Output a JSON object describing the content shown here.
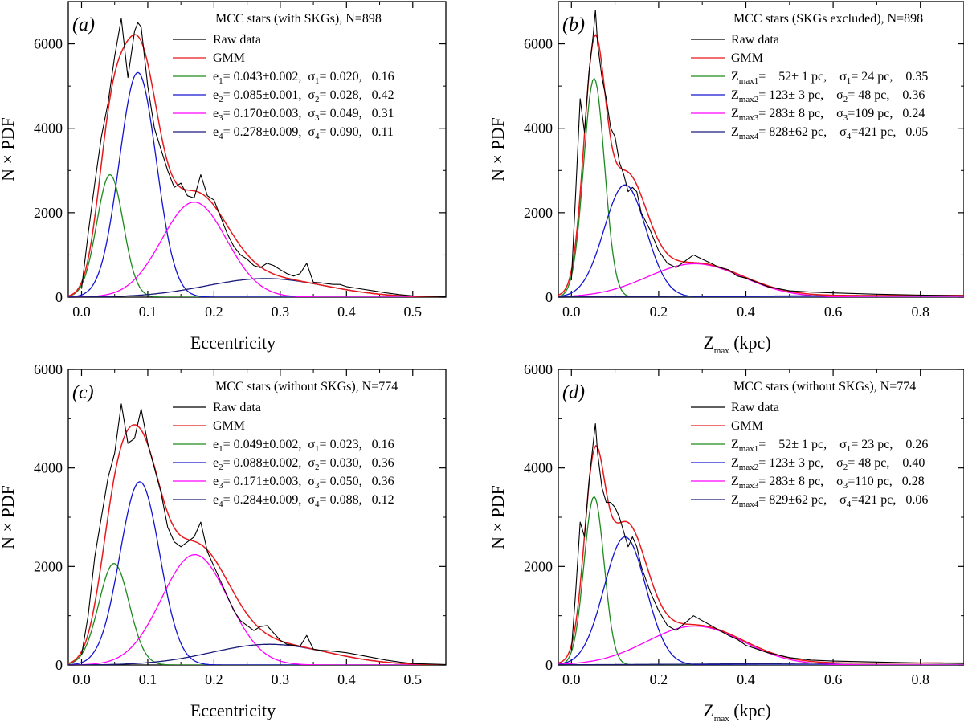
{
  "colors": {
    "raw": "#000000",
    "gmm": "#e8191c",
    "comp1": "#1e8a1e",
    "comp2": "#1414d2",
    "comp3": "#ff00ff",
    "comp4": "#1b1b7a"
  },
  "chart_data": [
    {
      "type": "line",
      "panel_label": "(a)",
      "xlabel": "Eccentricity",
      "ylabel": "N × PDF",
      "xlim": [
        -0.02,
        0.55
      ],
      "ylim": [
        0,
        7000
      ],
      "xticks": [
        "0.0",
        "0.1",
        "0.2",
        "0.3",
        "0.4",
        "0.5"
      ],
      "xtick_values": [
        0.0,
        0.1,
        0.2,
        0.3,
        0.4,
        0.5
      ],
      "yticks": [
        "0",
        "2000",
        "4000",
        "6000"
      ],
      "ytick_values": [
        0,
        2000,
        4000,
        6000
      ],
      "grid": false,
      "legend_placement": "top-right",
      "legend_title": "MCC stars (with SKGs),    N=898",
      "raw_label": "Raw data",
      "gmm_label": "GMM",
      "components": [
        {
          "sym": "e",
          "idx": "1",
          "rest": "= 0.043±0.002,  σ",
          "sidx": "1",
          "tail": "= 0.020,   0.16",
          "mu": 0.043,
          "sigma": 0.02,
          "peak": 2900
        },
        {
          "sym": "e",
          "idx": "2",
          "rest": "= 0.085±0.001,  σ",
          "sidx": "2",
          "tail": "= 0.028,   0.42",
          "mu": 0.085,
          "sigma": 0.028,
          "peak": 5320
        },
        {
          "sym": "e",
          "idx": "3",
          "rest": "= 0.170±0.003,  σ",
          "sidx": "3",
          "tail": "= 0.049,   0.31",
          "mu": 0.17,
          "sigma": 0.049,
          "peak": 2250
        },
        {
          "sym": "e",
          "idx": "4",
          "rest": "= 0.278±0.009,  σ",
          "sidx": "4",
          "tail": "= 0.090,   0.11",
          "mu": 0.278,
          "sigma": 0.09,
          "peak": 440
        }
      ],
      "raw_x": [
        0.0,
        0.01,
        0.02,
        0.03,
        0.04,
        0.05,
        0.06,
        0.07,
        0.08,
        0.085,
        0.09,
        0.1,
        0.11,
        0.12,
        0.13,
        0.14,
        0.15,
        0.16,
        0.17,
        0.18,
        0.19,
        0.2,
        0.21,
        0.22,
        0.23,
        0.24,
        0.25,
        0.26,
        0.27,
        0.28,
        0.29,
        0.3,
        0.31,
        0.32,
        0.33,
        0.34,
        0.35,
        0.36,
        0.37,
        0.38,
        0.39,
        0.4,
        0.42,
        0.44,
        0.46,
        0.48,
        0.5,
        0.52,
        0.55
      ],
      "raw_y": [
        200,
        1500,
        2700,
        3800,
        4600,
        5700,
        6600,
        5200,
        6300,
        6500,
        6400,
        5000,
        4000,
        3500,
        3000,
        2600,
        2700,
        2400,
        2350,
        2900,
        2400,
        2300,
        1900,
        1500,
        1200,
        1000,
        900,
        750,
        700,
        800,
        750,
        650,
        560,
        500,
        560,
        800,
        350,
        340,
        320,
        300,
        300,
        250,
        200,
        150,
        100,
        60,
        30,
        20,
        10
      ]
    },
    {
      "type": "line",
      "panel_label": "(b)",
      "xlabel": "Z",
      "xlabel_sub": "max",
      "xlabel_unit": " (kpc)",
      "ylabel": "N × PDF",
      "xlim": [
        -0.03,
        0.9
      ],
      "ylim": [
        0,
        7000
      ],
      "xticks": [
        "0.0",
        "0.2",
        "0.4",
        "0.6",
        "0.8"
      ],
      "xtick_values": [
        0.0,
        0.2,
        0.4,
        0.6,
        0.8
      ],
      "yticks": [
        "0",
        "2000",
        "4000",
        "6000"
      ],
      "ytick_values": [
        0,
        2000,
        4000,
        6000
      ],
      "grid": false,
      "legend_placement": "top-right",
      "legend_title": "MCC stars (SKGs excluded), N=898",
      "raw_label": "Raw data",
      "gmm_label": "GMM",
      "components": [
        {
          "sym": "Z",
          "idx": "max1",
          "rest": "=    52± 1 pc,    σ",
          "sidx": "1",
          "tail": "= 24 pc,    0.35",
          "mu": 0.052,
          "sigma": 0.024,
          "peak": 5180
        },
        {
          "sym": "Z",
          "idx": "max2",
          "rest": "= 123± 3 pc,    σ",
          "sidx": "2",
          "tail": "= 48 pc,    0.36",
          "mu": 0.123,
          "sigma": 0.048,
          "peak": 2660
        },
        {
          "sym": "Z",
          "idx": "max3",
          "rest": "= 283± 8 pc,    σ",
          "sidx": "3",
          "tail": "=109 pc,   0.24",
          "mu": 0.283,
          "sigma": 0.109,
          "peak": 790
        },
        {
          "sym": "Z",
          "idx": "max4",
          "rest": "= 828±62 pc,    σ",
          "sidx": "4",
          "tail": "=421 pc,   0.05",
          "mu": 0.828,
          "sigma": 0.421,
          "peak": 40
        }
      ],
      "raw_x": [
        0.0,
        0.01,
        0.02,
        0.03,
        0.04,
        0.05,
        0.055,
        0.06,
        0.07,
        0.08,
        0.09,
        0.1,
        0.11,
        0.12,
        0.13,
        0.14,
        0.15,
        0.16,
        0.18,
        0.2,
        0.22,
        0.24,
        0.26,
        0.28,
        0.3,
        0.32,
        0.34,
        0.36,
        0.38,
        0.4,
        0.45,
        0.5,
        0.55,
        0.6,
        0.7,
        0.8,
        0.9
      ],
      "raw_y": [
        400,
        2500,
        4700,
        3900,
        5300,
        6200,
        6800,
        6000,
        5200,
        4700,
        4000,
        3800,
        3200,
        2900,
        2500,
        2600,
        2500,
        2000,
        1600,
        1100,
        800,
        700,
        850,
        1000,
        900,
        800,
        700,
        650,
        500,
        450,
        250,
        150,
        120,
        100,
        70,
        50,
        30
      ]
    },
    {
      "type": "line",
      "panel_label": "(c)",
      "xlabel": "Eccentricity",
      "ylabel": "N × PDF",
      "xlim": [
        -0.02,
        0.55
      ],
      "ylim": [
        0,
        6000
      ],
      "xticks": [
        "0.0",
        "0.1",
        "0.2",
        "0.3",
        "0.4",
        "0.5"
      ],
      "xtick_values": [
        0.0,
        0.1,
        0.2,
        0.3,
        0.4,
        0.5
      ],
      "yticks": [
        "0",
        "2000",
        "4000",
        "6000"
      ],
      "ytick_values": [
        0,
        2000,
        4000,
        6000
      ],
      "grid": false,
      "legend_placement": "top-right",
      "legend_title": "MCC stars (without SKGs),   N=774",
      "raw_label": "Raw data",
      "gmm_label": "GMM",
      "components": [
        {
          "sym": "e",
          "idx": "1",
          "rest": "= 0.049±0.002,  σ",
          "sidx": "1",
          "tail": "= 0.023,   0.16",
          "mu": 0.049,
          "sigma": 0.023,
          "peak": 2060
        },
        {
          "sym": "e",
          "idx": "2",
          "rest": "= 0.088±0.002,  σ",
          "sidx": "2",
          "tail": "= 0.030,   0.36",
          "mu": 0.088,
          "sigma": 0.03,
          "peak": 3720
        },
        {
          "sym": "e",
          "idx": "3",
          "rest": "= 0.171±0.003,  σ",
          "sidx": "3",
          "tail": "= 0.050,   0.36",
          "mu": 0.171,
          "sigma": 0.05,
          "peak": 2240
        },
        {
          "sym": "e",
          "idx": "4",
          "rest": "= 0.284±0.009,  σ",
          "sidx": "4",
          "tail": "= 0.088,   0.12",
          "mu": 0.284,
          "sigma": 0.088,
          "peak": 420
        }
      ],
      "raw_x": [
        0.0,
        0.01,
        0.02,
        0.03,
        0.04,
        0.05,
        0.06,
        0.07,
        0.08,
        0.09,
        0.1,
        0.11,
        0.12,
        0.13,
        0.14,
        0.15,
        0.16,
        0.17,
        0.18,
        0.19,
        0.2,
        0.21,
        0.22,
        0.23,
        0.24,
        0.25,
        0.26,
        0.27,
        0.28,
        0.29,
        0.3,
        0.31,
        0.32,
        0.33,
        0.34,
        0.35,
        0.36,
        0.38,
        0.4,
        0.42,
        0.44,
        0.46,
        0.48,
        0.5,
        0.55
      ],
      "raw_y": [
        200,
        1000,
        2200,
        3000,
        3800,
        4300,
        5300,
        4500,
        4600,
        5200,
        4500,
        4000,
        3500,
        2800,
        2500,
        2400,
        2500,
        2600,
        2900,
        2300,
        2000,
        1700,
        1400,
        1100,
        900,
        800,
        700,
        780,
        800,
        650,
        500,
        420,
        400,
        380,
        600,
        320,
        300,
        280,
        250,
        200,
        150,
        100,
        60,
        30,
        10
      ]
    },
    {
      "type": "line",
      "panel_label": "(d)",
      "xlabel": "Z",
      "xlabel_sub": "max",
      "xlabel_unit": " (kpc)",
      "ylabel": "N × PDF",
      "xlim": [
        -0.03,
        0.9
      ],
      "ylim": [
        0,
        6000
      ],
      "xticks": [
        "0.0",
        "0.2",
        "0.4",
        "0.6",
        "0.8"
      ],
      "xtick_values": [
        0.0,
        0.2,
        0.4,
        0.6,
        0.8
      ],
      "yticks": [
        "0",
        "2000",
        "4000",
        "6000"
      ],
      "ytick_values": [
        0,
        2000,
        4000,
        6000
      ],
      "grid": false,
      "legend_placement": "top-right",
      "legend_title": "MCC stars (without SKGs),   N=774",
      "raw_label": "Raw data",
      "gmm_label": "GMM",
      "components": [
        {
          "sym": "Z",
          "idx": "max1",
          "rest": "=    52± 1 pc,    σ",
          "sidx": "1",
          "tail": "= 23 pc,    0.26",
          "mu": 0.052,
          "sigma": 0.023,
          "peak": 3420
        },
        {
          "sym": "Z",
          "idx": "max2",
          "rest": "= 123± 3 pc,    σ",
          "sidx": "2",
          "tail": "= 48 pc,    0.40",
          "mu": 0.123,
          "sigma": 0.048,
          "peak": 2600
        },
        {
          "sym": "Z",
          "idx": "max3",
          "rest": "= 283± 8 pc,    σ",
          "sidx": "3",
          "tail": "=110 pc,   0.28",
          "mu": 0.283,
          "sigma": 0.11,
          "peak": 790
        },
        {
          "sym": "Z",
          "idx": "max4",
          "rest": "= 829±62 pc,    σ",
          "sidx": "4",
          "tail": "=421 pc,   0.06",
          "mu": 0.829,
          "sigma": 0.421,
          "peak": 40
        }
      ],
      "raw_x": [
        0.0,
        0.01,
        0.02,
        0.03,
        0.04,
        0.05,
        0.055,
        0.06,
        0.07,
        0.08,
        0.09,
        0.1,
        0.11,
        0.12,
        0.13,
        0.14,
        0.15,
        0.16,
        0.18,
        0.2,
        0.22,
        0.24,
        0.26,
        0.28,
        0.3,
        0.32,
        0.34,
        0.36,
        0.38,
        0.4,
        0.45,
        0.5,
        0.55,
        0.6,
        0.7,
        0.8,
        0.9
      ],
      "raw_y": [
        300,
        1500,
        2900,
        2600,
        3700,
        4500,
        4900,
        4300,
        3600,
        3300,
        3300,
        3200,
        3000,
        2700,
        2400,
        2600,
        2400,
        2000,
        1500,
        1100,
        800,
        700,
        850,
        1000,
        900,
        800,
        700,
        600,
        520,
        400,
        250,
        150,
        100,
        80,
        60,
        40,
        30
      ]
    }
  ]
}
